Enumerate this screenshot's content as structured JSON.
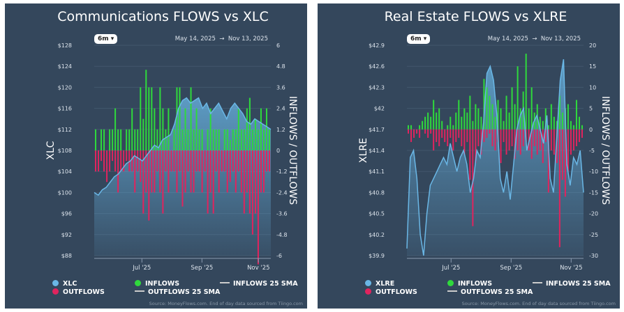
{
  "chart_data": [
    {
      "type": "bar+area",
      "title": "Communications FLOWS vs XLC",
      "range_button": "6m",
      "date_from": "May 14, 2025",
      "date_arrow": "→",
      "date_to": "Nov 13, 2025",
      "ylabel_left": "XLC",
      "ylabel_right": "INFLOWS / OUTFLOWS",
      "yticks_left": [
        "$128",
        "$124",
        "$120",
        "$116",
        "$112",
        "$108",
        "$104",
        "$100",
        "$96",
        "$92",
        "$88"
      ],
      "ylim_left": [
        88,
        128
      ],
      "yticks_right": [
        "6",
        "4.8",
        "3.6",
        "2.4",
        "1.2",
        "0",
        "-1.2",
        "-2.4",
        "-3.6",
        "-4.8",
        "-6"
      ],
      "ylim_right": [
        -6,
        6
      ],
      "xticks": [
        "Jul '25",
        "Sep '25",
        "Nov '25"
      ],
      "xtick_pos": [
        0.27,
        0.61,
        0.93
      ],
      "price": [
        100,
        99.5,
        100.5,
        101,
        102,
        103,
        103.5,
        104.5,
        105.5,
        106,
        107,
        106.5,
        106,
        107,
        108,
        109,
        108.5,
        110,
        110.5,
        111,
        113,
        116,
        117.5,
        118,
        117,
        117.5,
        118,
        116,
        117,
        115,
        116,
        117,
        115.5,
        114,
        116,
        117,
        116,
        115,
        113.5,
        113,
        114,
        113.5,
        113,
        112.5,
        112
      ],
      "inflows": [
        1.2,
        0,
        1.2,
        1.2,
        0,
        1.2,
        1.2,
        2.4,
        1.2,
        1.2,
        0,
        1.2,
        1.2,
        2.4,
        1.2,
        1.2,
        3.6,
        1.8,
        4.6,
        3.6,
        3.6,
        2.4,
        1.2,
        3.6,
        2.4,
        1.2,
        2.4,
        0,
        1.2,
        3.6,
        3.6,
        1.2,
        2.4,
        1.2,
        3.6,
        1.2,
        2.4,
        1.2,
        1.2,
        0,
        1.2,
        2.4,
        1.2,
        1.2,
        1.2,
        0,
        1.2,
        1.2,
        0.6,
        1.2,
        1.2,
        2.4,
        1.2,
        1.2,
        2.4,
        3,
        1.2,
        1.8,
        1.2,
        2.4,
        1.2,
        2.4,
        1.2
      ],
      "outflows": [
        -1.2,
        -1.2,
        -0.6,
        -1.2,
        -1.8,
        -1.2,
        -0.6,
        -1.2,
        -2.4,
        -1.2,
        -1.2,
        -0.6,
        -1.2,
        -1.2,
        -2.4,
        -1.2,
        -1.8,
        -3.6,
        -2.4,
        -4,
        -2.4,
        -2.4,
        -1.2,
        -2.4,
        -3.6,
        -1.2,
        -2.4,
        -1.2,
        -1.2,
        -2.4,
        -1.2,
        -3.2,
        -2.4,
        -1.2,
        -2.4,
        -2.4,
        -1.2,
        -1.2,
        -2.4,
        -1.2,
        -3.6,
        -2.4,
        -3.6,
        -1.2,
        -2.4,
        -1.2,
        -1.2,
        -2.4,
        -1.8,
        -1.2,
        -2.4,
        -1.2,
        -2.4,
        -3.6,
        -2.4,
        -3.6,
        -4.8,
        -3.6,
        -6.5,
        -2.4,
        -2.4,
        -1.2,
        -1.2
      ],
      "legend": [
        "XLC",
        "INFLOWS",
        "INFLOWS 25 SMA",
        "OUTFLOWS",
        "OUTFLOWS 25 SMA"
      ],
      "source": "Source: MoneyFlows.com. End of day data sourced from Tiingo.com"
    },
    {
      "type": "bar+area",
      "title": "Real Estate FLOWS vs XLRE",
      "range_button": "6m",
      "date_from": "May 14, 2025",
      "date_arrow": "→",
      "date_to": "Nov 13, 2025",
      "ylabel_left": "XLRE",
      "ylabel_right": "INFLOWS / OUTFLOWS",
      "yticks_left": [
        "$42.9",
        "$42.6",
        "$42.3",
        "$42",
        "$41.7",
        "$41.4",
        "$41.1",
        "$40.8",
        "$40.5",
        "$40.2",
        "$39.9"
      ],
      "ylim_left": [
        39.9,
        42.9
      ],
      "yticks_right": [
        "20",
        "15",
        "10",
        "5",
        "0",
        "-5",
        "-10",
        "-15",
        "-20",
        "-25",
        "-30"
      ],
      "ylim_right": [
        -30,
        20
      ],
      "xticks": [
        "Jul '25",
        "Sep '25",
        "Nov '25"
      ],
      "xtick_pos": [
        0.25,
        0.59,
        0.93
      ],
      "price": [
        40.0,
        41.3,
        41.4,
        41.0,
        40.2,
        39.9,
        40.5,
        40.9,
        41.0,
        41.1,
        41.2,
        41.3,
        41.2,
        41.5,
        41.3,
        41.1,
        41.3,
        41.4,
        41.2,
        40.8,
        41.0,
        41.4,
        41.3,
        41.8,
        42.5,
        42.6,
        42.4,
        41.9,
        41.0,
        40.8,
        41.1,
        40.7,
        41.2,
        41.7,
        41.9,
        42.0,
        41.4,
        41.6,
        41.8,
        41.9,
        41.7,
        41.5,
        41.9,
        41.0,
        40.8,
        41.6,
        42.4,
        42.7,
        41.2,
        40.9,
        41.3,
        41.2,
        41.4,
        40.8
      ],
      "inflows": [
        1,
        1,
        0,
        0,
        1,
        2,
        3,
        4,
        3,
        7,
        4,
        5,
        2,
        0,
        1,
        3,
        1,
        4,
        7,
        3,
        5,
        4,
        8,
        2,
        6,
        5,
        3,
        12,
        10,
        8,
        6,
        3,
        7,
        5,
        2,
        8,
        4,
        10,
        6,
        15,
        5,
        9,
        18,
        5,
        10,
        4,
        6,
        3,
        2,
        5,
        1,
        6,
        3,
        2,
        8,
        4,
        5,
        6,
        2,
        1,
        7,
        3,
        1
      ],
      "outflows": [
        -1,
        -3,
        -2,
        -1,
        -2,
        0,
        -1,
        -2,
        -1,
        -5,
        -3,
        -4,
        -2,
        -3,
        -4,
        -2,
        -5,
        -3,
        -2,
        -4,
        -6,
        -3,
        -12,
        -23,
        -8,
        -4,
        -6,
        -3,
        -2,
        -1,
        -4,
        -5,
        -3,
        -8,
        -3,
        -6,
        -5,
        -4,
        -7,
        -5,
        -6,
        -4,
        -3,
        -5,
        -7,
        -4,
        -6,
        -5,
        -8,
        -3,
        -15,
        -5,
        -6,
        -8,
        -28,
        -12,
        -16,
        -10,
        -6,
        -5,
        -4,
        -3,
        -2
      ],
      "legend": [
        "XLRE",
        "INFLOWS",
        "INFLOWS 25 SMA",
        "OUTFLOWS",
        "OUTFLOWS 25 SMA"
      ],
      "source": "Source: MoneyFlows.com. End of day data sourced from Tiingo.com"
    }
  ],
  "colors": {
    "panel": "#34475c",
    "price": "#6ab7e6",
    "inflows": "#2fd93c",
    "outflows": "#e0245e"
  }
}
